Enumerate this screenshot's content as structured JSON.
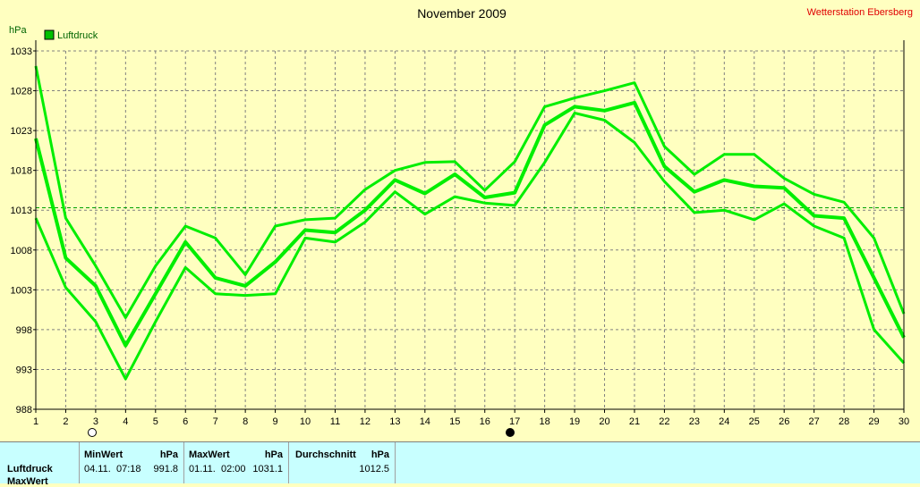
{
  "chart_data": {
    "type": "line",
    "title": "November 2009",
    "station": "Wetterstation Ebersberg",
    "ylabel": "hPa",
    "legend": [
      "Luftdruck"
    ],
    "legend_color": "#00c000",
    "line_color": "#00ee00",
    "x": [
      1,
      2,
      3,
      4,
      5,
      6,
      7,
      8,
      9,
      10,
      11,
      12,
      13,
      14,
      15,
      16,
      17,
      18,
      19,
      20,
      21,
      22,
      23,
      24,
      25,
      26,
      27,
      28,
      29,
      30
    ],
    "ylim": [
      988,
      1033
    ],
    "yticks": [
      988,
      993,
      998,
      1003,
      1008,
      1013,
      1018,
      1023,
      1028,
      1033
    ],
    "average_line": 1013.3,
    "series": [
      {
        "values": [
          1031.1,
          1012.0,
          1006.0,
          999.5,
          1006.0,
          1011.0,
          1009.5,
          1004.9,
          1011.0,
          1011.8,
          1012.0,
          1015.6,
          1018.0,
          1019.0,
          1019.1,
          1015.5,
          1019.1,
          1026.0,
          1027.1,
          1028.0,
          1029.0,
          1021.0,
          1017.5,
          1020.0,
          1020.0,
          1017.0,
          1015.0,
          1014.0,
          1009.5,
          1000.0
        ]
      },
      {
        "values": [
          1022.0,
          1007.0,
          1003.5,
          996.0,
          1002.5,
          1009.0,
          1004.5,
          1003.5,
          1006.5,
          1010.5,
          1010.2,
          1013.0,
          1016.8,
          1015.1,
          1017.5,
          1014.6,
          1015.2,
          1023.7,
          1026.0,
          1025.5,
          1026.5,
          1018.5,
          1015.3,
          1016.8,
          1016.0,
          1015.8,
          1012.3,
          1012.0,
          1004.5,
          997.0
        ]
      },
      {
        "values": [
          1012.0,
          1003.3,
          999.0,
          991.8,
          999.0,
          1005.8,
          1002.5,
          1002.3,
          1002.5,
          1009.5,
          1009.0,
          1011.5,
          1015.3,
          1012.5,
          1014.7,
          1013.9,
          1013.6,
          1019.0,
          1025.2,
          1024.3,
          1021.5,
          1016.6,
          1012.7,
          1013.0,
          1011.8,
          1013.8,
          1011.0,
          1009.5,
          998.0,
          993.8
        ]
      }
    ]
  },
  "stats": {
    "row_label": "Luftdruck",
    "row2_label": "MaxWert",
    "min_header": "MinWert",
    "max_header": "MaxWert",
    "avg_header": "Durchschnitt",
    "unit": "hPa",
    "min_date": "04.11.",
    "min_time": "07:18",
    "min_value": "991.8",
    "max_date": "01.11.",
    "max_time": "02:00",
    "max_value": "1031.1",
    "avg_value": "1012.5"
  }
}
